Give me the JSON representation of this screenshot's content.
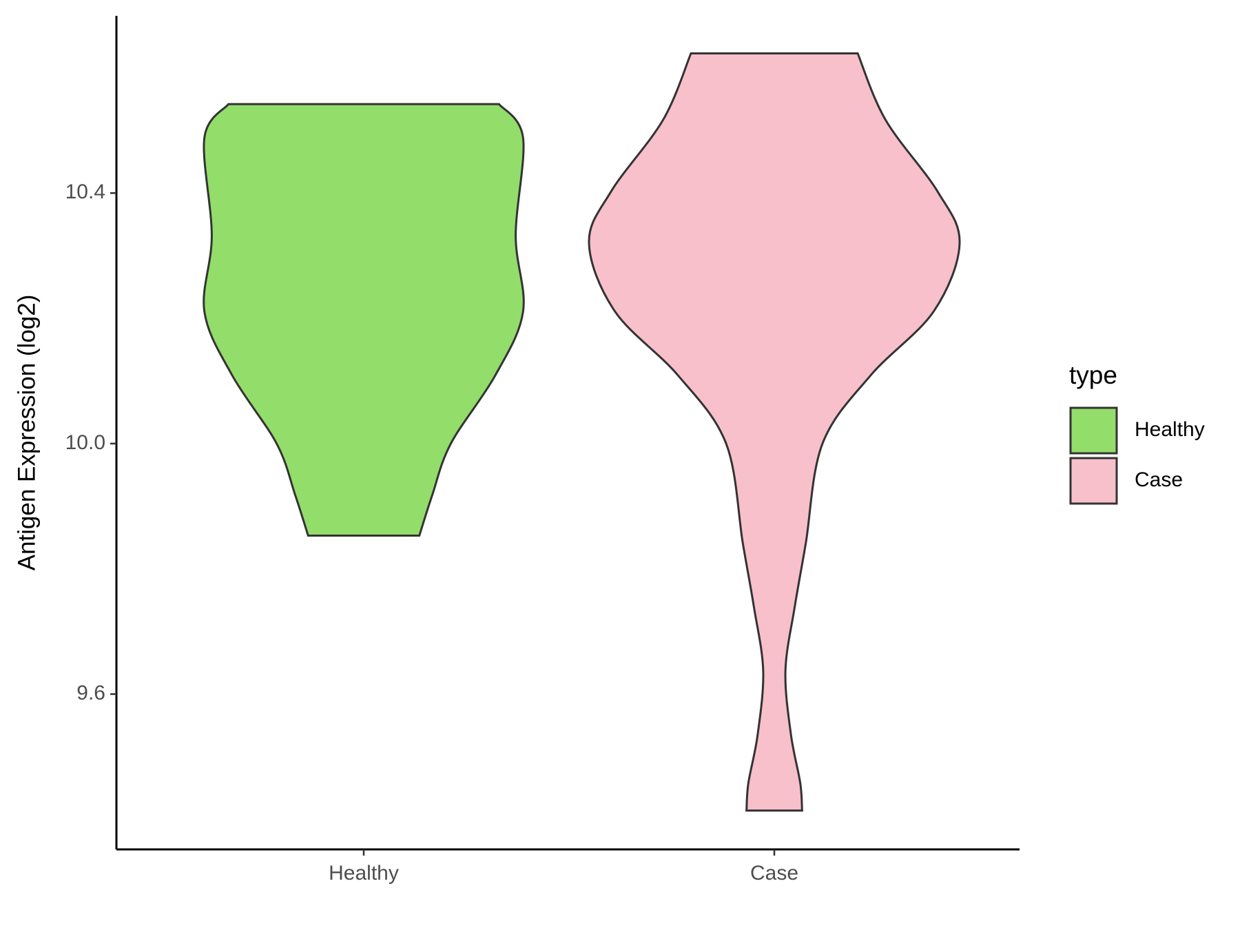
{
  "chart_data": {
    "type": "violin",
    "y_label": "Antigen Expression (log2)",
    "categories": [
      "Healthy",
      "Case"
    ],
    "ylim": [
      9.352,
      10.683
    ],
    "yticks": [
      {
        "value": 9.6,
        "label": "9.6"
      },
      {
        "value": 10.0,
        "label": "10.0"
      },
      {
        "value": 10.4,
        "label": "10.4"
      }
    ],
    "legend_title": "type",
    "legend": "right",
    "series": [
      {
        "name": "Healthy",
        "color": "#93dd6a",
        "y": [
          10.542,
          10.488,
          10.332,
          10.211,
          10.109,
          10.0,
          9.918,
          9.853
        ],
        "width": [
          0.73,
          0.86,
          0.82,
          0.86,
          0.71,
          0.47,
          0.37,
          0.3
        ]
      },
      {
        "name": "Case",
        "color": "#f7c0cb",
        "y": [
          10.623,
          10.517,
          10.403,
          10.32,
          10.211,
          10.109,
          10.0,
          9.841,
          9.739,
          9.637,
          9.535,
          9.458,
          9.414
        ],
        "width": [
          0.45,
          0.6,
          0.88,
          1.0,
          0.86,
          0.52,
          0.26,
          0.17,
          0.11,
          0.06,
          0.09,
          0.14,
          0.15
        ]
      }
    ]
  }
}
